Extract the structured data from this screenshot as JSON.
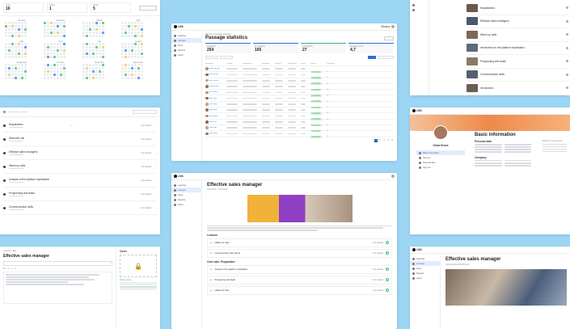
{
  "stats_top": {
    "values": [
      "16",
      "1",
      "5"
    ]
  },
  "calendar": {
    "months": [
      "January",
      "February",
      "March",
      "April",
      "May",
      "June",
      "July",
      "August",
      "September",
      "October",
      "November",
      "December"
    ]
  },
  "left_list": {
    "items": [
      "Negotiations",
      "Welcome call",
      "Effective sales managers",
      "Warm-up calls",
      "Analysis of the platform exploitation",
      "Prospecting with leads",
      "Communication skills"
    ],
    "status_label": "Not started"
  },
  "passage_statistics": {
    "header": {
      "user": "Oksana",
      "role": "Admin"
    },
    "sidebar": [
      "Learning",
      "Courses",
      "Tests",
      "Reports",
      "Users"
    ],
    "breadcrumb": "Reports / Passage statistics",
    "title": "Passage statistics",
    "stats": [
      {
        "label": "Assigned",
        "value": "254"
      },
      {
        "label": "In progress",
        "value": "165"
      },
      {
        "label": "Completed",
        "value": "27"
      },
      {
        "label": "Average score",
        "value": "4,7"
      }
    ],
    "table": {
      "headers": [
        "Employee",
        "Position",
        "Department",
        "Assigned",
        "Started",
        "Completed",
        "Score",
        "Status",
        "Certificate"
      ],
      "rows": [
        {
          "name": "Adam Brown",
          "status": "Completed"
        },
        {
          "name": "Kate White",
          "status": "Completed"
        },
        {
          "name": "John Smith",
          "status": "Completed"
        },
        {
          "name": "Anna Green",
          "status": "Completed"
        },
        {
          "name": "Tom Black",
          "status": "Completed"
        },
        {
          "name": "Mary Lee",
          "status": "Completed"
        },
        {
          "name": "Nick Gray",
          "status": "Completed"
        },
        {
          "name": "Olga Blue",
          "status": "Completed"
        },
        {
          "name": "Ivan Reed",
          "status": "Completed"
        },
        {
          "name": "Lisa Ford",
          "status": "Completed"
        },
        {
          "name": "Mark Hall",
          "status": "Completed"
        },
        {
          "name": "Sara King",
          "status": "Completed"
        }
      ]
    },
    "pagination": [
      "1",
      "2",
      "3",
      "4",
      "5"
    ]
  },
  "course_page": {
    "title": "Effective sales manager",
    "sections": [
      "Lessons",
      "Cold calls. Preparation"
    ],
    "lessons": [
      "Hidden for Kids",
      "Communication with clients",
      "Analysis of the platform exploitation",
      "Prospecting with leads",
      "Hidden for Kids"
    ],
    "status_label": "Not started"
  },
  "profile": {
    "title": "Basic information",
    "name": "Olivia Evans",
    "menu": [
      "Basic information",
      "Security",
      "Personal files",
      "Sign out"
    ],
    "sections": [
      "Personal data",
      "Company",
      "Fields of competence"
    ]
  },
  "right_list": {
    "items": [
      "Negotiations",
      "Effective sales managers",
      "Warm-up calls",
      "Introduction to the platform exploitation",
      "Prospecting with leads",
      "Communication skills",
      "Introduction"
    ]
  },
  "editor": {
    "title": "Effective sales manager",
    "side_title": "Cover",
    "side_button": "Add a group"
  },
  "course_right": {
    "title": "Effective sales manager"
  }
}
